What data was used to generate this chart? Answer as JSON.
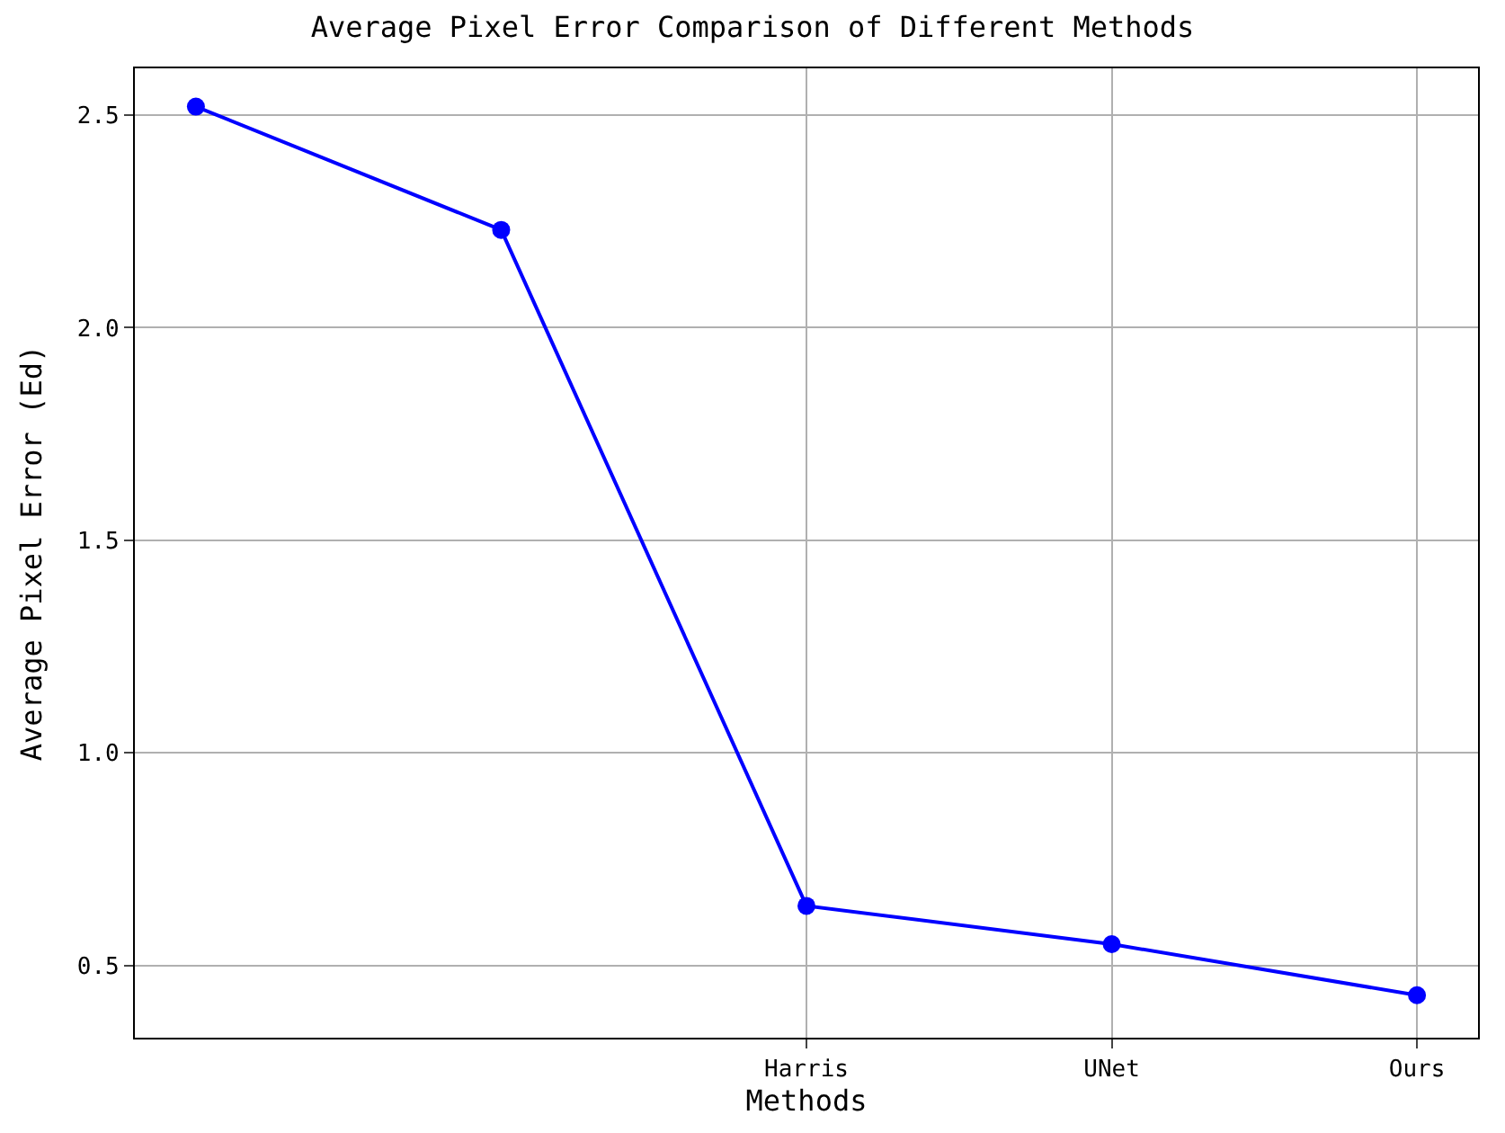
{
  "chart_data": {
    "type": "line",
    "title": "Average Pixel Error Comparison of Different Methods",
    "xlabel": "Methods",
    "ylabel": "Average Pixel Error (Ed)",
    "categories": [
      null,
      null,
      "Harris",
      "UNet",
      "Ours"
    ],
    "series": [
      {
        "color": "#0000ff",
        "values": [
          2.52,
          2.23,
          0.64,
          0.55,
          0.43
        ]
      }
    ],
    "ylim": [
      0.33,
      2.61
    ],
    "yticks": [
      {
        "value": 0.5,
        "label": "0.5"
      },
      {
        "value": 1.0,
        "label": "1.0"
      },
      {
        "value": 1.5,
        "label": "1.5"
      },
      {
        "value": 2.0,
        "label": "2.0"
      },
      {
        "value": 2.5,
        "label": "2.5"
      }
    ],
    "grid": true,
    "legend": false,
    "marker": "circle",
    "line_style": "solid"
  }
}
